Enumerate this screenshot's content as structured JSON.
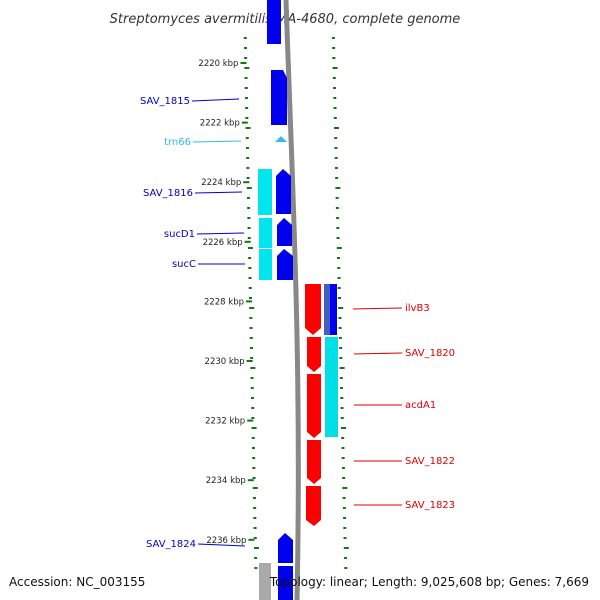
{
  "title": "Streptomyces avermitilis MA-4680, complete genome",
  "footer": {
    "accession": "Accession: NC_003155",
    "summary": "Topology: linear; Length: 9,025,608 bp; Genes: 7,669"
  },
  "colors": {
    "forward_gene": "#0000ee",
    "forward_gene_highlight": "#2a2aff",
    "rna": "#33bbee",
    "cds_cyan": "#00e5ee",
    "reverse_gene": "#ff0000",
    "reverse_cds_cyan": "#00dfe8",
    "reverse_blue": "#4060c0",
    "pseudo_gray": "#a9a9a9",
    "backbone": "#888888",
    "tick": "#117711",
    "left_label": "#0000cc",
    "rna_label": "#33bbee",
    "right_label": "#dd0000"
  },
  "axis": {
    "unit": "kbp",
    "ticks": [
      {
        "value": 2220,
        "label": "2220 kbp"
      },
      {
        "value": 2222,
        "label": "2222 kbp"
      },
      {
        "value": 2224,
        "label": "2224 kbp"
      },
      {
        "value": 2226,
        "label": "2226 kbp"
      },
      {
        "value": 2228,
        "label": "2228 kbp"
      },
      {
        "value": 2230,
        "label": "2230 kbp"
      },
      {
        "value": 2232,
        "label": "2232 kbp"
      },
      {
        "value": 2234,
        "label": "2234 kbp"
      },
      {
        "value": 2236,
        "label": "2236 kbp"
      }
    ]
  },
  "genes": {
    "left": [
      {
        "name": "SAV_1815",
        "type": "gene"
      },
      {
        "name": "trn66",
        "type": "rna"
      },
      {
        "name": "SAV_1816",
        "type": "gene"
      },
      {
        "name": "sucD1",
        "type": "gene"
      },
      {
        "name": "sucC",
        "type": "gene"
      },
      {
        "name": "SAV_1824",
        "type": "gene"
      }
    ],
    "right": [
      {
        "name": "ilvB3",
        "type": "gene"
      },
      {
        "name": "SAV_1820",
        "type": "gene"
      },
      {
        "name": "acdA1",
        "type": "gene"
      },
      {
        "name": "SAV_1822",
        "type": "gene"
      },
      {
        "name": "SAV_1823",
        "type": "gene"
      }
    ]
  }
}
